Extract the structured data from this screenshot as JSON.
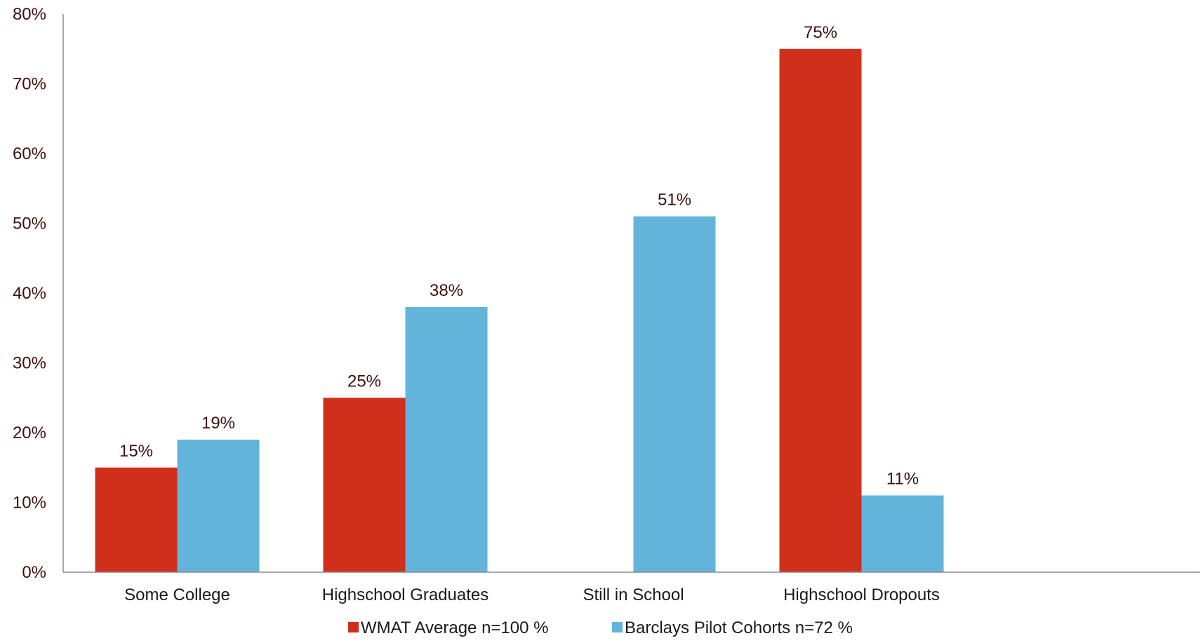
{
  "chart_data": {
    "type": "bar",
    "categories": [
      "Some College",
      "Highschool Graduates",
      "Still in School",
      "Highschool Dropouts"
    ],
    "series": [
      {
        "name": "WMAT Average n=100 %",
        "color": "#d0301b",
        "values": [
          15,
          25,
          null,
          75
        ],
        "labels": [
          "15%",
          "25%",
          "",
          "75%"
        ]
      },
      {
        "name": "Barclays Pilot Cohorts n=72 %",
        "color": "#63b4da",
        "values": [
          19,
          38,
          51,
          11
        ],
        "labels": [
          "19%",
          "38%",
          "51%",
          "11%"
        ]
      }
    ],
    "ylim": [
      0,
      80
    ],
    "yticks": [
      "0%",
      "10%",
      "20%",
      "30%",
      "40%",
      "50%",
      "60%",
      "70%",
      "80%"
    ],
    "title": "",
    "xlabel": "",
    "ylabel": "",
    "grid": false,
    "legend_position": "bottom-center"
  }
}
